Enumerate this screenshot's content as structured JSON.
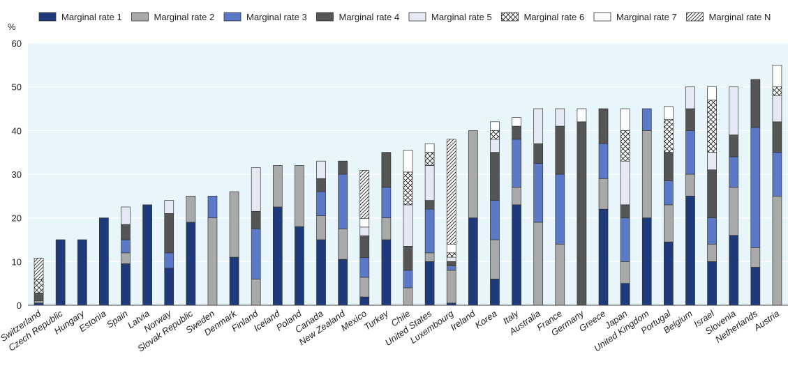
{
  "chart_data": {
    "type": "bar",
    "stacked": true,
    "yaxis_unit_label": "%",
    "ylim": [
      0,
      60
    ],
    "yticks": [
      0,
      10,
      20,
      30,
      40,
      50,
      60
    ],
    "grid": "horizontal",
    "legend_position": "top",
    "categories": [
      "Switzerland",
      "Czech Republic",
      "Hungary",
      "Estonia",
      "Spain",
      "Latvia",
      "Norway",
      "Slovak Republic",
      "Sweden",
      "Denmark",
      "Finland",
      "Iceland",
      "Poland",
      "Canada",
      "New Zealand",
      "Mexico",
      "Turkey",
      "Chile",
      "United States",
      "Luxembourg",
      "Ireland",
      "Korea",
      "Italy",
      "Australia",
      "France",
      "Germany",
      "Greece",
      "Japan",
      "United Kingdom",
      "Portugal",
      "Belgium",
      "Israel",
      "Slovenia",
      "Netherlands",
      "Austria"
    ],
    "series": [
      {
        "name": "Marginal rate 1",
        "fill": "#1f3a7a",
        "pattern": "none",
        "values": [
          0.5,
          15,
          15,
          20,
          9.5,
          23,
          8.5,
          19,
          0,
          11,
          0,
          22.5,
          18,
          15,
          10.5,
          1.9,
          15,
          0,
          10,
          0.5,
          20,
          6,
          23,
          0,
          0,
          0,
          22,
          5,
          20,
          14.5,
          25,
          10,
          16,
          8.7,
          0
        ]
      },
      {
        "name": "Marginal rate 2",
        "fill": "#a9a9a9",
        "pattern": "none",
        "values": [
          0.5,
          0,
          0,
          0,
          2.5,
          0,
          0,
          6,
          20,
          15,
          6,
          9.5,
          14,
          5.5,
          7,
          4.5,
          5,
          4,
          2,
          7.5,
          20,
          9,
          4,
          19,
          14,
          0,
          7,
          5,
          20,
          8.5,
          5,
          4,
          11,
          4.5,
          25
        ]
      },
      {
        "name": "Marginal rate 3",
        "fill": "#5b79c7",
        "pattern": "none",
        "values": [
          0,
          0,
          0,
          0,
          3,
          0,
          3.5,
          0,
          5,
          0,
          11.5,
          0,
          0,
          5.5,
          12.5,
          4.5,
          7,
          4,
          10,
          1,
          0,
          9,
          11,
          13.5,
          16,
          0,
          8,
          10,
          5,
          5.5,
          10,
          6,
          7,
          27.5,
          10
        ]
      },
      {
        "name": "Marginal rate 4",
        "fill": "#555555",
        "pattern": "none",
        "values": [
          1.8,
          0,
          0,
          0,
          3.5,
          0,
          9,
          0,
          0,
          0,
          4,
          0,
          0,
          3,
          3,
          5,
          8,
          5.5,
          2,
          1,
          0,
          11,
          3,
          4.5,
          11,
          42,
          8,
          3,
          0,
          6.5,
          5,
          11,
          5,
          11,
          7
        ]
      },
      {
        "name": "Marginal rate 5",
        "fill": "#e6e9f5",
        "pattern": "none",
        "values": [
          0,
          0,
          0,
          0,
          4,
          0,
          3,
          0,
          0,
          0,
          10,
          0,
          0,
          4,
          0,
          2,
          0,
          9.5,
          8,
          1,
          0,
          3,
          0,
          8,
          4,
          0,
          0,
          10,
          0,
          0,
          5,
          4,
          11,
          0,
          6
        ]
      },
      {
        "name": "Marginal rate 6",
        "fill": "#ffffff",
        "pattern": "crosshatch",
        "values": [
          3,
          0,
          0,
          0,
          0,
          0,
          0,
          0,
          0,
          0,
          0,
          0,
          0,
          0,
          0,
          0,
          0,
          7.5,
          3,
          1,
          0,
          2,
          0,
          0,
          0,
          0,
          0,
          7,
          0,
          7.5,
          0,
          12,
          0,
          0,
          2
        ]
      },
      {
        "name": "Marginal rate 7",
        "fill": "#ffffff",
        "pattern": "none",
        "values": [
          0,
          0,
          0,
          0,
          0,
          0,
          0,
          0,
          0,
          0,
          0,
          0,
          0,
          0,
          0,
          2,
          0,
          5,
          2,
          2,
          0,
          2,
          2,
          0,
          0,
          3,
          0,
          5,
          0,
          3,
          0,
          3,
          0,
          0,
          5
        ]
      },
      {
        "name": "Marginal rate N",
        "fill": "#ffffff",
        "pattern": "diagonal",
        "values": [
          5,
          0,
          0,
          0,
          0,
          0,
          0,
          0,
          0,
          0,
          0,
          0,
          0,
          0,
          0,
          11,
          0,
          0,
          0,
          24,
          0,
          0,
          0,
          0,
          0,
          0,
          0,
          0,
          0,
          0,
          0,
          0,
          0,
          0,
          0
        ]
      }
    ]
  }
}
